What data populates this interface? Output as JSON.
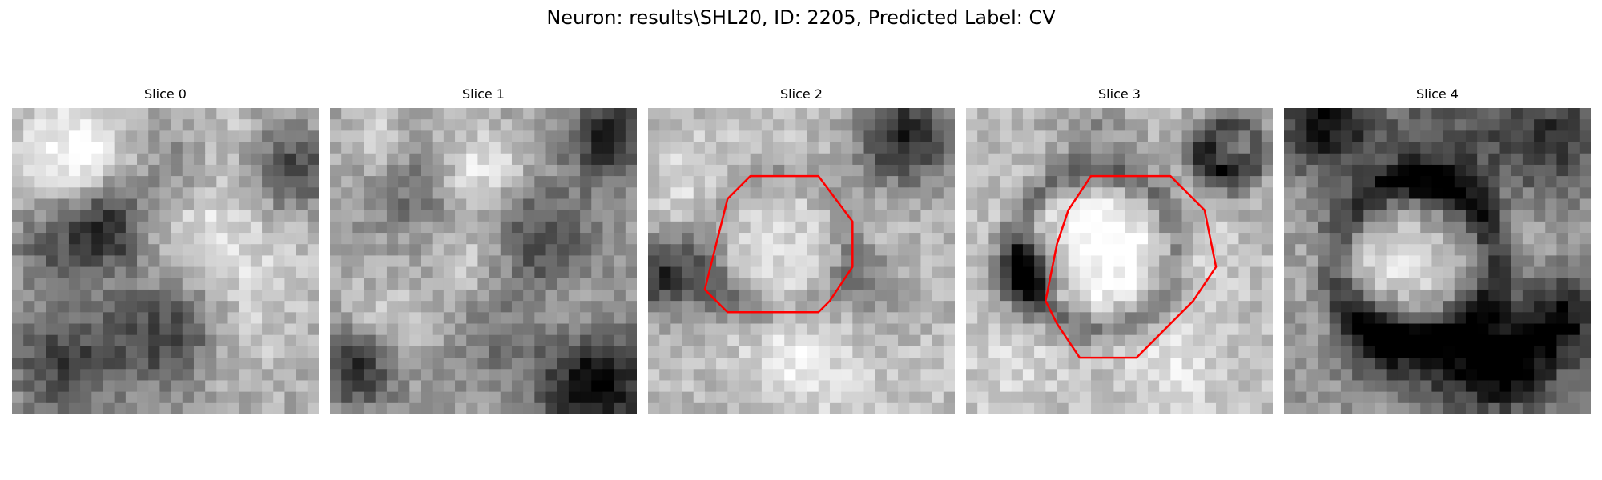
{
  "title": "Neuron: results\\SHL20, ID: 2205, Predicted Label: CV",
  "slices": [
    {
      "label": "Slice 0",
      "has_contour": false
    },
    {
      "label": "Slice 1",
      "has_contour": false
    },
    {
      "label": "Slice 2",
      "has_contour": true
    },
    {
      "label": "Slice 3",
      "has_contour": true
    },
    {
      "label": "Slice 4",
      "has_contour": false
    }
  ],
  "colormap": "gray",
  "contour_color": "#ff0000"
}
